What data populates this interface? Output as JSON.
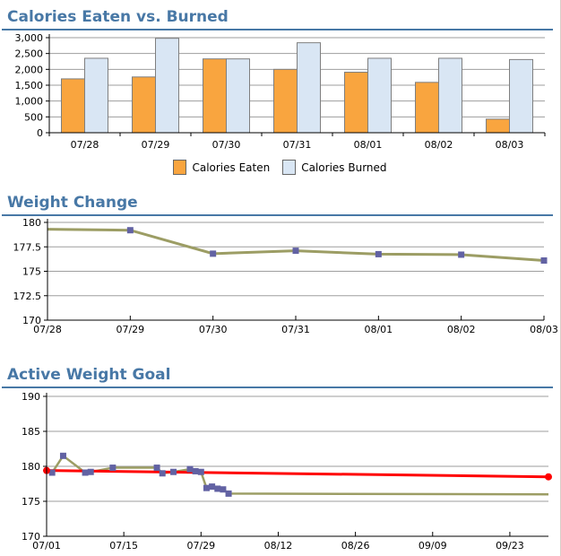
{
  "theme": {
    "background": "#ffffff",
    "frame_border": "#d8cfc8",
    "title_color": "#4878A6",
    "rule_color": "#4878A6",
    "grid_color": "#9e9e9e",
    "axis_color": "#000000"
  },
  "sections": [
    {
      "title": "Calories Eaten vs. Burned"
    },
    {
      "title": "Weight Change"
    },
    {
      "title": "Active Weight Goal"
    }
  ],
  "chart_data": [
    {
      "type": "bar",
      "title": "Calories Eaten vs. Burned",
      "categories": [
        "07/28",
        "07/29",
        "07/30",
        "07/31",
        "08/01",
        "08/02",
        "08/03"
      ],
      "series": [
        {
          "name": "Calories Eaten",
          "color": "#F9A53F",
          "values": [
            1700,
            1760,
            2330,
            2000,
            1910,
            1590,
            430
          ]
        },
        {
          "name": "Calories Burned",
          "color": "#D9E6F4",
          "values": [
            2350,
            2980,
            2330,
            2840,
            2350,
            2350,
            2310
          ]
        }
      ],
      "bar_border": "#7f7f7f",
      "ylim": [
        0,
        3000
      ],
      "yticks": [
        {
          "v": 0,
          "label": "0"
        },
        {
          "v": 500,
          "label": "500"
        },
        {
          "v": 1000,
          "label": "1,000"
        },
        {
          "v": 1500,
          "label": "1,500"
        },
        {
          "v": 2000,
          "label": "2,000"
        },
        {
          "v": 2500,
          "label": "2,500"
        },
        {
          "v": 3000,
          "label": "3,000"
        }
      ],
      "legend_position": "bottom",
      "grid": true
    },
    {
      "type": "line",
      "title": "Weight Change",
      "x": [
        "07/28",
        "07/29",
        "07/30",
        "07/31",
        "08/01",
        "08/02",
        "08/03"
      ],
      "values": [
        179.3,
        179.2,
        176.8,
        177.1,
        176.75,
        176.7,
        176.1
      ],
      "markers": [
        false,
        true,
        true,
        true,
        true,
        true,
        true
      ],
      "line_color": "#9C9D64",
      "marker_color": "#6262A3",
      "ylim": [
        170,
        180
      ],
      "yticks": [
        {
          "v": 170,
          "label": "170"
        },
        {
          "v": 172.5,
          "label": "172.5"
        },
        {
          "v": 175,
          "label": "175"
        },
        {
          "v": 177.5,
          "label": "177.5"
        },
        {
          "v": 180,
          "label": "180"
        }
      ],
      "grid": true
    },
    {
      "type": "line_time",
      "title": "Active Weight Goal",
      "ylim": [
        170,
        190
      ],
      "yticks": [
        {
          "v": 170,
          "label": "170"
        },
        {
          "v": 175,
          "label": "175"
        },
        {
          "v": 180,
          "label": "180"
        },
        {
          "v": 185,
          "label": "185"
        },
        {
          "v": 190,
          "label": "190"
        }
      ],
      "xlim_days": [
        0,
        91
      ],
      "xticks": [
        {
          "day": 0,
          "label": "07/01"
        },
        {
          "day": 14,
          "label": "07/15"
        },
        {
          "day": 28,
          "label": "07/29"
        },
        {
          "day": 42,
          "label": "08/12"
        },
        {
          "day": 56,
          "label": "08/26"
        },
        {
          "day": 70,
          "label": "09/09"
        },
        {
          "day": 84,
          "label": "09/23"
        }
      ],
      "series": [
        {
          "name": "weight",
          "line_color": "#9C9D64",
          "marker_color": "#6262A3",
          "marker_shape": "square",
          "line_width": 2.5,
          "points": [
            [
              0,
              179.3,
              0
            ],
            [
              1,
              179.1,
              1
            ],
            [
              3,
              181.5,
              1
            ],
            [
              7,
              179.1,
              1
            ],
            [
              8,
              179.2,
              1
            ],
            [
              12,
              179.8,
              1
            ],
            [
              20,
              179.8,
              1
            ],
            [
              21,
              179.0,
              1
            ],
            [
              23,
              179.2,
              1
            ],
            [
              26,
              179.6,
              1
            ],
            [
              27,
              179.3,
              1
            ],
            [
              28,
              179.2,
              1
            ],
            [
              29,
              176.9,
              1
            ],
            [
              30,
              177.1,
              1
            ],
            [
              31,
              176.8,
              1
            ],
            [
              32,
              176.7,
              1
            ],
            [
              33,
              176.1,
              1
            ],
            [
              91,
              176.0,
              0
            ]
          ]
        },
        {
          "name": "goal_trend",
          "line_color": "#FF0000",
          "marker_color": "#FF0000",
          "marker_shape": "circle",
          "line_width": 3,
          "points": [
            [
              0,
              179.4,
              1
            ],
            [
              91,
              178.5,
              1
            ]
          ]
        }
      ],
      "grid": true
    }
  ]
}
